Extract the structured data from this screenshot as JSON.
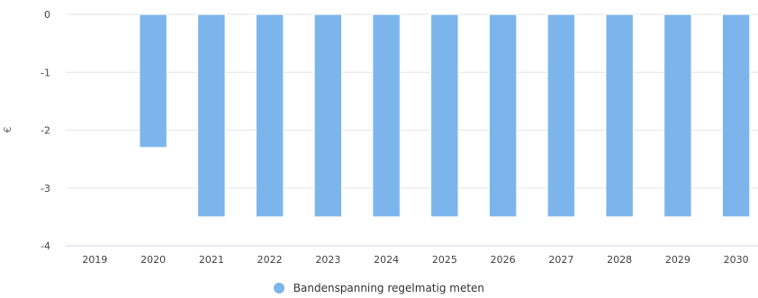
{
  "chart_data": {
    "type": "bar",
    "title": "",
    "xlabel": "",
    "ylabel": "€",
    "categories": [
      "2019",
      "2020",
      "2021",
      "2022",
      "2023",
      "2024",
      "2025",
      "2026",
      "2027",
      "2028",
      "2029",
      "2030"
    ],
    "series": [
      {
        "name": "Bandenspanning regelmatig meten",
        "color": "#7cb5ec",
        "values": [
          0,
          -2.3,
          -3.5,
          -3.5,
          -3.5,
          -3.5,
          -3.5,
          -3.5,
          -3.5,
          -3.5,
          -3.5,
          -3.5
        ]
      }
    ],
    "ylim": [
      -4,
      0
    ],
    "yticks": [
      0,
      -1,
      -2,
      -3,
      -4
    ],
    "grid": true,
    "legend_position": "bottom-center"
  }
}
